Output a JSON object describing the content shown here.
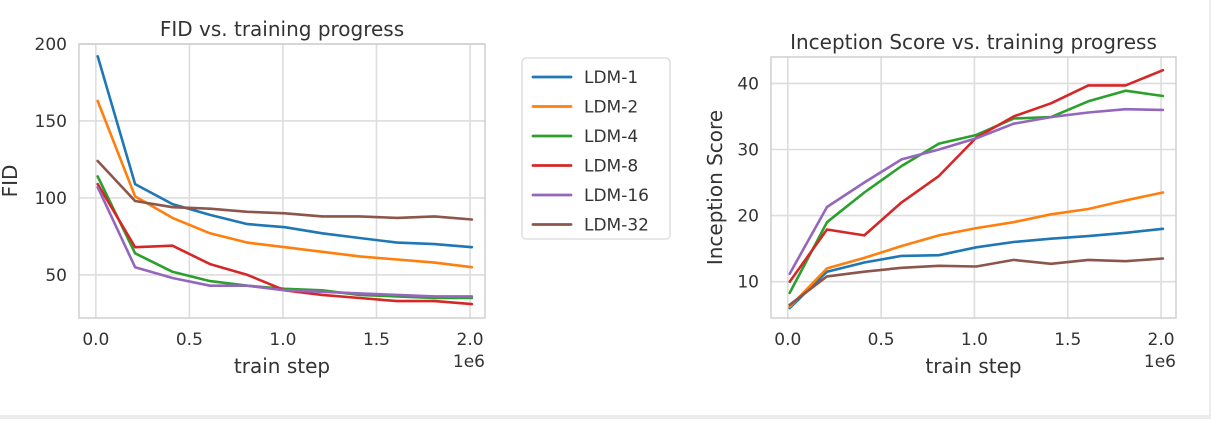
{
  "chart_data": [
    {
      "type": "line",
      "title": "FID vs. training progress",
      "xlabel": "train step",
      "ylabel": "FID",
      "x_offset_label": "1e6",
      "xlim": [
        -0.09,
        2.08
      ],
      "ylim": [
        22,
        200
      ],
      "xticks": [
        0.0,
        0.5,
        1.0,
        1.5,
        2.0
      ],
      "xtick_labels": [
        "0.0",
        "0.5",
        "1.0",
        "1.5",
        "2.0"
      ],
      "yticks": [
        50,
        100,
        150,
        200
      ],
      "ytick_labels": [
        "50",
        "100",
        "150",
        "200"
      ],
      "grid": true,
      "legend_placement": "outside-right",
      "x": [
        0.01,
        0.21,
        0.41,
        0.61,
        0.81,
        1.01,
        1.21,
        1.41,
        1.61,
        1.81,
        2.01
      ],
      "series": [
        {
          "name": "LDM-1",
          "color": "#1f77b4",
          "values": [
            192,
            109,
            96,
            89,
            83,
            81,
            77,
            74,
            71,
            70,
            68
          ]
        },
        {
          "name": "LDM-2",
          "color": "#ff7f0e",
          "values": [
            163,
            101,
            87,
            77,
            71,
            68,
            65,
            62,
            60,
            58,
            55
          ]
        },
        {
          "name": "LDM-4",
          "color": "#2ca02c",
          "values": [
            114,
            64,
            52,
            46,
            43,
            41,
            40,
            37,
            36,
            35,
            35
          ]
        },
        {
          "name": "LDM-8",
          "color": "#d62728",
          "values": [
            109,
            68,
            69,
            57,
            50,
            40,
            37,
            35,
            33,
            33,
            31
          ]
        },
        {
          "name": "LDM-16",
          "color": "#9467bd",
          "values": [
            107,
            55,
            48,
            43,
            43,
            40,
            39,
            38,
            37,
            36,
            36
          ]
        },
        {
          "name": "LDM-32",
          "color": "#8c564b",
          "values": [
            124,
            98,
            94,
            93,
            91,
            90,
            88,
            88,
            87,
            88,
            86
          ]
        }
      ]
    },
    {
      "type": "line",
      "title": "Inception Score vs. training progress",
      "xlabel": "train step",
      "ylabel": "Inception Score",
      "x_offset_label": "1e6",
      "xlim": [
        -0.09,
        2.08
      ],
      "ylim": [
        4.5,
        44
      ],
      "xticks": [
        0.0,
        0.5,
        1.0,
        1.5,
        2.0
      ],
      "xtick_labels": [
        "0.0",
        "0.5",
        "1.0",
        "1.5",
        "2.0"
      ],
      "yticks": [
        10,
        20,
        30,
        40
      ],
      "ytick_labels": [
        "10",
        "20",
        "30",
        "40"
      ],
      "grid": true,
      "legend_placement": "none",
      "x": [
        0.01,
        0.21,
        0.41,
        0.61,
        0.81,
        1.01,
        1.21,
        1.41,
        1.61,
        1.81,
        2.01
      ],
      "series": [
        {
          "name": "LDM-1",
          "color": "#1f77b4",
          "values": [
            6.0,
            11.5,
            12.9,
            13.9,
            14.0,
            15.2,
            16.0,
            16.5,
            16.9,
            17.4,
            18.0
          ]
        },
        {
          "name": "LDM-2",
          "color": "#ff7f0e",
          "values": [
            6.2,
            12.0,
            13.6,
            15.4,
            17.0,
            18.1,
            19.0,
            20.2,
            21.0,
            22.3,
            23.5
          ]
        },
        {
          "name": "LDM-4",
          "color": "#2ca02c",
          "values": [
            8.3,
            19.0,
            23.5,
            27.5,
            30.9,
            32.2,
            34.7,
            34.9,
            37.3,
            38.9,
            38.1
          ]
        },
        {
          "name": "LDM-8",
          "color": "#d62728",
          "values": [
            10.0,
            17.9,
            17.0,
            22.0,
            26.0,
            31.8,
            35.0,
            37.0,
            39.7,
            39.7,
            42.0
          ]
        },
        {
          "name": "LDM-16",
          "color": "#9467bd",
          "values": [
            11.2,
            21.3,
            25.0,
            28.5,
            30.0,
            31.7,
            33.9,
            34.9,
            35.6,
            36.1,
            36.0
          ]
        },
        {
          "name": "LDM-32",
          "color": "#8c564b",
          "values": [
            6.5,
            10.8,
            11.5,
            12.1,
            12.4,
            12.3,
            13.3,
            12.7,
            13.3,
            13.1,
            13.5
          ]
        }
      ]
    }
  ]
}
